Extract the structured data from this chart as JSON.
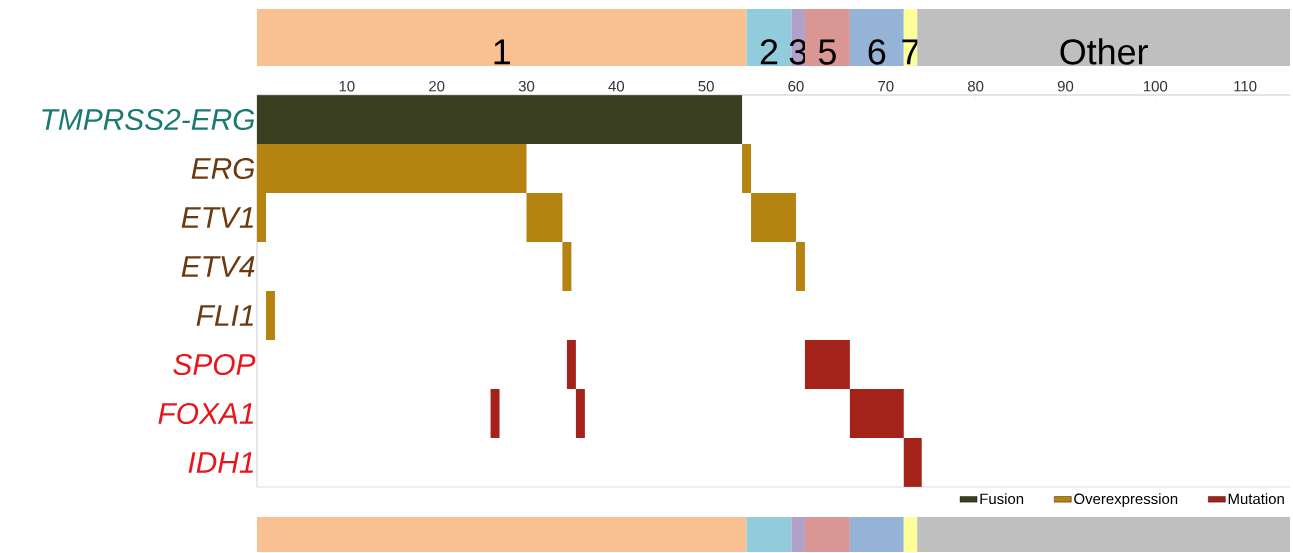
{
  "chart_data": [
    {
      "type": "bar",
      "orientation": "horizontal",
      "stacked": true,
      "categories": [
        null
      ],
      "series": [
        {
          "name": "1",
          "color": "#f9c191",
          "values": [
            54.5
          ]
        },
        {
          "name": "2",
          "color": "#92cbdc",
          "values": [
            5
          ]
        },
        {
          "name": "3",
          "color": "#b1a0c7",
          "values": [
            1.5
          ]
        },
        {
          "name": "5",
          "color": "#da9694",
          "values": [
            5
          ]
        },
        {
          "name": "6",
          "color": "#95b3d7",
          "values": [
            6
          ]
        },
        {
          "name": "7",
          "color": "#ffff99",
          "values": [
            1.5
          ]
        },
        {
          "name": "Other",
          "color": "#bfbfbf",
          "values": [
            41.5
          ]
        }
      ],
      "xlim": [
        0,
        115
      ],
      "tick_labels": false
    },
    {
      "type": "bar",
      "orientation": "horizontal",
      "categories": [
        "TMPRSS2-ERG",
        "ERG",
        "ETV1",
        "ETV4",
        "FLI1",
        "SPOP",
        "FOXA1",
        "IDH1"
      ],
      "series": [
        {
          "name": "Fusion",
          "color": "#3a3f22",
          "values": [
            54,
            null,
            null,
            null,
            null,
            null,
            null,
            null
          ],
          "base": [
            0,
            null,
            null,
            null,
            null,
            null,
            null,
            null
          ]
        },
        {
          "name": "Overexpression",
          "color": "#b5830f",
          "values": [
            null,
            30,
            1,
            1,
            1,
            null,
            null,
            null
          ],
          "base": [
            null,
            0,
            0,
            34,
            1,
            null,
            null,
            null
          ]
        },
        {
          "color": "#b5830f",
          "values": [
            null,
            1,
            4,
            1,
            null,
            null,
            null,
            null
          ],
          "base": [
            null,
            54,
            30,
            60,
            null,
            null,
            null,
            null
          ]
        },
        {
          "color": "#b5830f",
          "values": [
            null,
            null,
            5,
            null,
            null,
            null,
            null,
            null
          ],
          "base": [
            null,
            null,
            55,
            null,
            null,
            null,
            null,
            null
          ]
        },
        {
          "name": "Mutation",
          "color": "#a3221a",
          "values": [
            null,
            null,
            null,
            null,
            null,
            1,
            1,
            2
          ],
          "base": [
            null,
            null,
            null,
            null,
            null,
            34.5,
            26,
            72
          ]
        },
        {
          "color": "#a3221a",
          "values": [
            null,
            null,
            null,
            null,
            null,
            5,
            1,
            null
          ],
          "base": [
            null,
            null,
            null,
            null,
            null,
            61,
            35.5,
            null
          ]
        },
        {
          "color": "#a3221a",
          "values": [
            null,
            null,
            null,
            null,
            null,
            null,
            6,
            null
          ],
          "base": [
            null,
            null,
            null,
            null,
            null,
            null,
            66,
            null
          ]
        }
      ],
      "xlim": [
        0,
        115
      ],
      "xticks": [
        10,
        20,
        30,
        40,
        50,
        60,
        70,
        80,
        90,
        100,
        110
      ],
      "legend": "bottom right"
    }
  ]
}
